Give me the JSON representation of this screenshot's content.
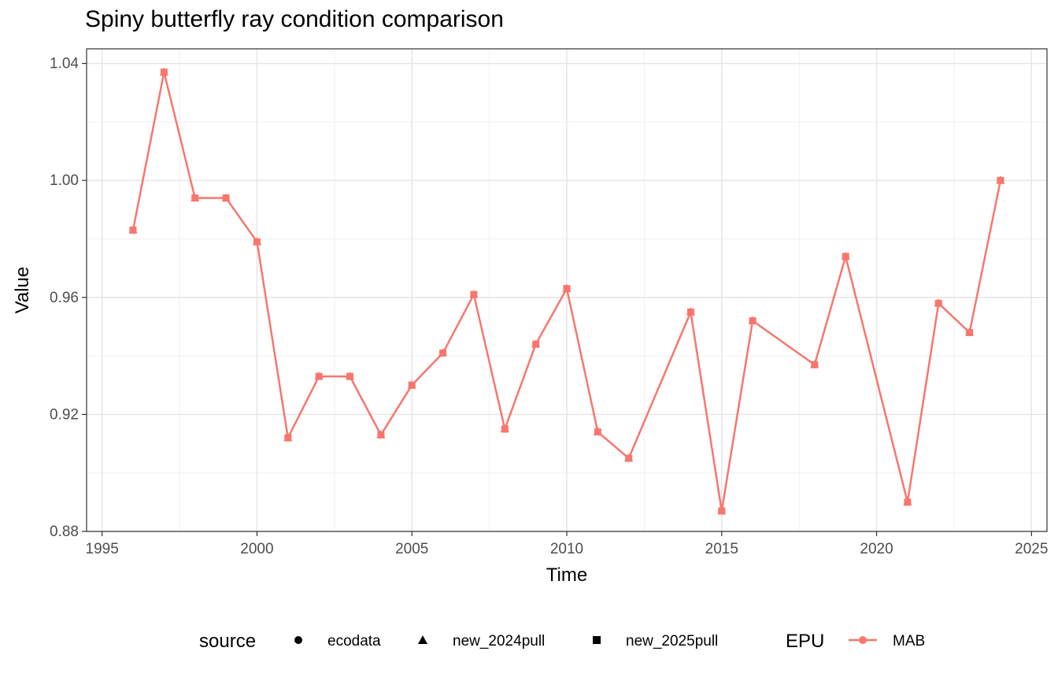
{
  "chart_data": {
    "type": "line",
    "title": "Spiny butterfly ray condition comparison",
    "xlabel": "Time",
    "ylabel": "Value",
    "xlim": [
      1994.5,
      2025.5
    ],
    "ylim": [
      0.88,
      1.045
    ],
    "xticks": [
      1995,
      2000,
      2005,
      2010,
      2015,
      2020,
      2025
    ],
    "xtick_labels": [
      "1995",
      "2000",
      "2005",
      "2010",
      "2015",
      "2020",
      "2025"
    ],
    "yticks": [
      0.88,
      0.92,
      0.96,
      1.0,
      1.04
    ],
    "ytick_labels": [
      "0.88",
      "0.92",
      "0.96",
      "1.00",
      "1.04"
    ],
    "grid": true,
    "legend_position": "bottom",
    "color": "#F8766D",
    "x": [
      1996,
      1997,
      1998,
      1999,
      2000,
      2001,
      2002,
      2003,
      2004,
      2005,
      2006,
      2007,
      2008,
      2009,
      2010,
      2011,
      2012,
      2014,
      2015,
      2016,
      2018,
      2019,
      2021,
      2022,
      2023,
      2024
    ],
    "series": [
      {
        "name": "MAB",
        "y": [
          0.983,
          1.037,
          0.994,
          0.994,
          0.979,
          0.912,
          0.933,
          0.933,
          0.913,
          0.93,
          0.941,
          0.961,
          0.915,
          0.944,
          0.963,
          0.914,
          0.905,
          0.955,
          0.887,
          0.952,
          0.937,
          0.974,
          0.89,
          0.958,
          0.948,
          1.0
        ]
      }
    ],
    "legend": {
      "source_title": "source",
      "source_items": [
        {
          "label": "ecodata",
          "shape": "circle"
        },
        {
          "label": "new_2024pull",
          "shape": "triangle"
        },
        {
          "label": "new_2025pull",
          "shape": "square"
        }
      ],
      "epu_title": "EPU",
      "epu_items": [
        {
          "label": "MAB",
          "color": "#F8766D"
        }
      ]
    }
  }
}
